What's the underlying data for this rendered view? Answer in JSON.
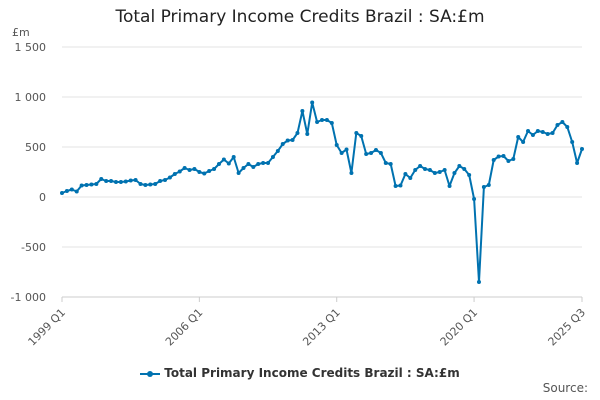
{
  "chart_data": {
    "type": "line",
    "title": "Total Primary Income Credits Brazil : SA:£m",
    "unit_label": "£m",
    "source_label": "Source:",
    "ylim": [
      -1000,
      1500
    ],
    "yticks": [
      -1000,
      -500,
      0,
      500,
      1000,
      1500
    ],
    "ytick_labels": [
      "-1 000",
      "-500",
      "0",
      "500",
      "1 000",
      "1 500"
    ],
    "xtick_labels": [
      "1999 Q1",
      "2006 Q1",
      "2013 Q1",
      "2020 Q1",
      "2025 Q3"
    ],
    "grid": true,
    "legend_position": "bottom",
    "series": [
      {
        "name": "Total Primary Income Credits Brazil : SA:£m",
        "color": "#0072b0",
        "x": [
          "1999 Q1",
          "1999 Q2",
          "1999 Q3",
          "1999 Q4",
          "2000 Q1",
          "2000 Q2",
          "2000 Q3",
          "2000 Q4",
          "2001 Q1",
          "2001 Q2",
          "2001 Q3",
          "2001 Q4",
          "2002 Q1",
          "2002 Q2",
          "2002 Q3",
          "2002 Q4",
          "2003 Q1",
          "2003 Q2",
          "2003 Q3",
          "2003 Q4",
          "2004 Q1",
          "2004 Q2",
          "2004 Q3",
          "2004 Q4",
          "2005 Q1",
          "2005 Q2",
          "2005 Q3",
          "2005 Q4",
          "2006 Q1",
          "2006 Q2",
          "2006 Q3",
          "2006 Q4",
          "2007 Q1",
          "2007 Q2",
          "2007 Q3",
          "2007 Q4",
          "2008 Q1",
          "2008 Q2",
          "2008 Q3",
          "2008 Q4",
          "2009 Q1",
          "2009 Q2",
          "2009 Q3",
          "2009 Q4",
          "2010 Q1",
          "2010 Q2",
          "2010 Q3",
          "2010 Q4",
          "2011 Q1",
          "2011 Q2",
          "2011 Q3",
          "2011 Q4",
          "2012 Q1",
          "2012 Q2",
          "2012 Q3",
          "2012 Q4",
          "2013 Q1",
          "2013 Q2",
          "2013 Q3",
          "2013 Q4",
          "2014 Q1",
          "2014 Q2",
          "2014 Q3",
          "2014 Q4",
          "2015 Q1",
          "2015 Q2",
          "2015 Q3",
          "2015 Q4",
          "2016 Q1",
          "2016 Q2",
          "2016 Q3",
          "2016 Q4",
          "2017 Q1",
          "2017 Q2",
          "2017 Q3",
          "2017 Q4",
          "2018 Q1",
          "2018 Q2",
          "2018 Q3",
          "2018 Q4",
          "2019 Q1",
          "2019 Q2",
          "2019 Q3",
          "2019 Q4",
          "2020 Q1",
          "2020 Q2",
          "2020 Q3",
          "2020 Q4",
          "2021 Q1",
          "2021 Q2",
          "2021 Q3",
          "2021 Q4",
          "2022 Q1",
          "2022 Q2",
          "2022 Q3",
          "2022 Q4",
          "2023 Q1",
          "2023 Q2",
          "2023 Q3",
          "2023 Q4",
          "2024 Q1",
          "2024 Q2",
          "2024 Q3",
          "2024 Q4",
          "2025 Q1",
          "2025 Q2",
          "2025 Q3"
        ],
        "values": [
          40,
          60,
          75,
          55,
          115,
          120,
          125,
          130,
          180,
          160,
          160,
          150,
          150,
          155,
          165,
          170,
          130,
          120,
          125,
          130,
          160,
          170,
          195,
          230,
          255,
          290,
          270,
          280,
          250,
          235,
          260,
          280,
          330,
          375,
          335,
          400,
          240,
          290,
          330,
          300,
          330,
          340,
          340,
          400,
          460,
          530,
          565,
          570,
          640,
          860,
          630,
          945,
          750,
          770,
          770,
          740,
          520,
          440,
          475,
          240,
          640,
          610,
          430,
          440,
          470,
          440,
          340,
          330,
          110,
          115,
          230,
          190,
          270,
          310,
          280,
          270,
          240,
          250,
          270,
          110,
          240,
          310,
          280,
          220,
          -20,
          -850,
          100,
          120,
          370,
          405,
          410,
          360,
          380,
          600,
          550,
          660,
          620,
          660,
          650,
          630,
          640,
          720,
          750,
          700,
          550,
          340,
          480
        ]
      }
    ]
  }
}
